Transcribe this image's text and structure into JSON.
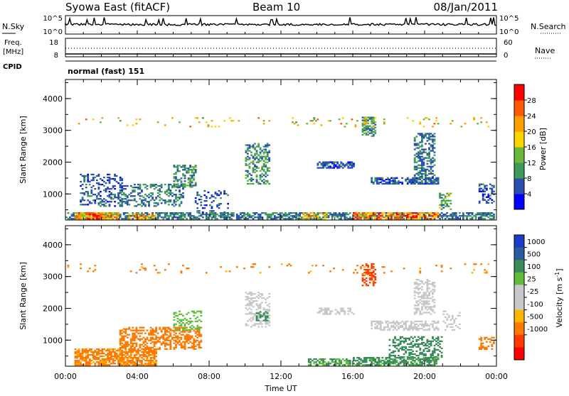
{
  "header": {
    "title": "Syowa East (fitACF)",
    "beam": "Beam 10",
    "date": "08/Jan/2011"
  },
  "param_rows": {
    "nsky": {
      "label": "N.Sky",
      "left_top": "10^5",
      "left_bottom": "10^0",
      "right_top": "10^5",
      "right_bottom": "10^0",
      "right_label": "N.Search"
    },
    "freq": {
      "label_top": "Freq.",
      "label_bottom": "[MHz]",
      "left_top": "18",
      "left_bottom": "8",
      "right_top": "60",
      "right_bottom": "0",
      "right_label": "Nave"
    },
    "cpid": {
      "label": "CPID",
      "mode": "normal (fast) 151"
    }
  },
  "x_axis": {
    "label": "Time UT",
    "ticks": [
      "00:00",
      "04:00",
      "08:00",
      "12:00",
      "16:00",
      "20:00",
      "00:00"
    ]
  },
  "colors": {
    "power_scale": [
      "#0000ff",
      "#2a4fb0",
      "#3c9a5a",
      "#6ab93a",
      "#ffd200",
      "#ff9e00",
      "#ff5a00",
      "#ff0000"
    ],
    "velocity_scale": [
      "#1e3cc8",
      "#2a5aa0",
      "#3a8a5a",
      "#5fbe3c",
      "#c8c8c8",
      "#c8c8c8",
      "#ffb400",
      "#ff7800",
      "#ff3c00",
      "#ff0000"
    ]
  },
  "chart_data": [
    {
      "type": "heatmap",
      "title": "",
      "xlabel": "Time UT",
      "ylabel": "Slant Range [km]",
      "yticks": [
        "1000",
        "2000",
        "3000",
        "4000"
      ],
      "ylim": [
        180,
        4600
      ],
      "xlim": [
        0,
        24
      ],
      "colorbar": {
        "label": "Power [dB]",
        "ticks": [
          "4",
          "8",
          "12",
          "16",
          "20",
          "24",
          "28"
        ],
        "range": [
          0,
          32
        ]
      },
      "regions": [
        {
          "t0": 0.0,
          "t1": 23.9,
          "r0": 200,
          "r1": 400,
          "value": 8,
          "density": 0.65
        },
        {
          "t0": 0.5,
          "t1": 3.0,
          "r0": 200,
          "r1": 400,
          "value": 20,
          "density": 0.8
        },
        {
          "t0": 1.2,
          "t1": 2.0,
          "r0": 200,
          "r1": 350,
          "value": 30,
          "density": 0.7
        },
        {
          "t0": 3.5,
          "t1": 5.0,
          "r0": 200,
          "r1": 380,
          "value": 20,
          "density": 0.7
        },
        {
          "t0": 0.8,
          "t1": 3.2,
          "r0": 600,
          "r1": 1600,
          "value": 6,
          "density": 0.35
        },
        {
          "t0": 3.0,
          "t1": 6.5,
          "r0": 600,
          "r1": 1300,
          "value": 8,
          "density": 0.35
        },
        {
          "t0": 6.0,
          "t1": 7.2,
          "r0": 1200,
          "r1": 1900,
          "value": 10,
          "density": 0.5
        },
        {
          "t0": 7.2,
          "t1": 9.0,
          "r0": 400,
          "r1": 1100,
          "value": 6,
          "density": 0.2
        },
        {
          "t0": 10.0,
          "t1": 11.3,
          "r0": 1300,
          "r1": 2600,
          "value": 10,
          "density": 0.45
        },
        {
          "t0": 14.0,
          "t1": 16.0,
          "r0": 1800,
          "r1": 2000,
          "value": 6,
          "density": 0.7
        },
        {
          "t0": 13.2,
          "t1": 14.5,
          "r0": 200,
          "r1": 400,
          "value": 18,
          "density": 0.5
        },
        {
          "t0": 16.5,
          "t1": 17.3,
          "r0": 2800,
          "r1": 3400,
          "value": 10,
          "density": 0.5
        },
        {
          "t0": 16.0,
          "t1": 20.8,
          "r0": 200,
          "r1": 400,
          "value": 24,
          "density": 0.75
        },
        {
          "t0": 17.0,
          "t1": 20.8,
          "r0": 1300,
          "r1": 1500,
          "value": 6,
          "density": 0.65
        },
        {
          "t0": 19.4,
          "t1": 20.6,
          "r0": 1300,
          "r1": 2900,
          "value": 8,
          "density": 0.45
        },
        {
          "t0": 20.8,
          "t1": 21.5,
          "r0": 500,
          "r1": 1000,
          "value": 12,
          "density": 0.45
        },
        {
          "t0": 23.0,
          "t1": 23.9,
          "r0": 700,
          "r1": 1300,
          "value": 6,
          "density": 0.35
        },
        {
          "t0": 0.0,
          "t1": 23.9,
          "r0": 3100,
          "r1": 3400,
          "value": 18,
          "density": 0.05
        }
      ]
    },
    {
      "type": "heatmap",
      "title": "",
      "xlabel": "Time UT",
      "ylabel": "Slant Range [km]",
      "yticks": [
        "1000",
        "2000",
        "3000",
        "4000"
      ],
      "ylim": [
        180,
        4600
      ],
      "xlim": [
        0,
        24
      ],
      "colorbar": {
        "label": "Velocity [m s^-1]",
        "ticks": [
          "1000",
          "500",
          "100",
          "25",
          "-25",
          "-100",
          "-500",
          "-1000"
        ]
      },
      "regions": [
        {
          "t0": 0.5,
          "t1": 5.0,
          "r0": 200,
          "r1": 700,
          "value": -120,
          "density": 0.7
        },
        {
          "t0": 3.0,
          "t1": 7.5,
          "r0": 700,
          "r1": 1400,
          "value": -150,
          "density": 0.5
        },
        {
          "t0": 6.0,
          "t1": 7.5,
          "r0": 1300,
          "r1": 1900,
          "value": 40,
          "density": 0.3
        },
        {
          "t0": 10.0,
          "t1": 11.3,
          "r0": 1400,
          "r1": 2500,
          "value": 0,
          "density": 0.4
        },
        {
          "t0": 10.6,
          "t1": 11.2,
          "r0": 1600,
          "r1": 1900,
          "value": 300,
          "density": 0.5
        },
        {
          "t0": 13.5,
          "t1": 15.8,
          "r0": 200,
          "r1": 400,
          "value": 100,
          "density": 0.6
        },
        {
          "t0": 14.0,
          "t1": 16.0,
          "r0": 1800,
          "r1": 2000,
          "value": 0,
          "density": 0.45
        },
        {
          "t0": 16.5,
          "t1": 17.3,
          "r0": 2700,
          "r1": 3400,
          "value": -600,
          "density": 0.5
        },
        {
          "t0": 16.0,
          "t1": 20.8,
          "r0": 200,
          "r1": 450,
          "value": 120,
          "density": 0.7
        },
        {
          "t0": 17.0,
          "t1": 20.8,
          "r0": 1300,
          "r1": 1600,
          "value": 0,
          "density": 0.55
        },
        {
          "t0": 18.0,
          "t1": 21.0,
          "r0": 450,
          "r1": 1100,
          "value": 200,
          "density": 0.4
        },
        {
          "t0": 19.4,
          "t1": 20.6,
          "r0": 1800,
          "r1": 2900,
          "value": 0,
          "density": 0.45
        },
        {
          "t0": 21.0,
          "t1": 22.0,
          "r0": 1300,
          "r1": 1900,
          "value": 0,
          "density": 0.3
        },
        {
          "t0": 23.0,
          "t1": 23.9,
          "r0": 700,
          "r1": 1100,
          "value": -200,
          "density": 0.4
        },
        {
          "t0": 0.0,
          "t1": 23.9,
          "r0": 3100,
          "r1": 3400,
          "value": -120,
          "density": 0.05
        }
      ]
    }
  ]
}
